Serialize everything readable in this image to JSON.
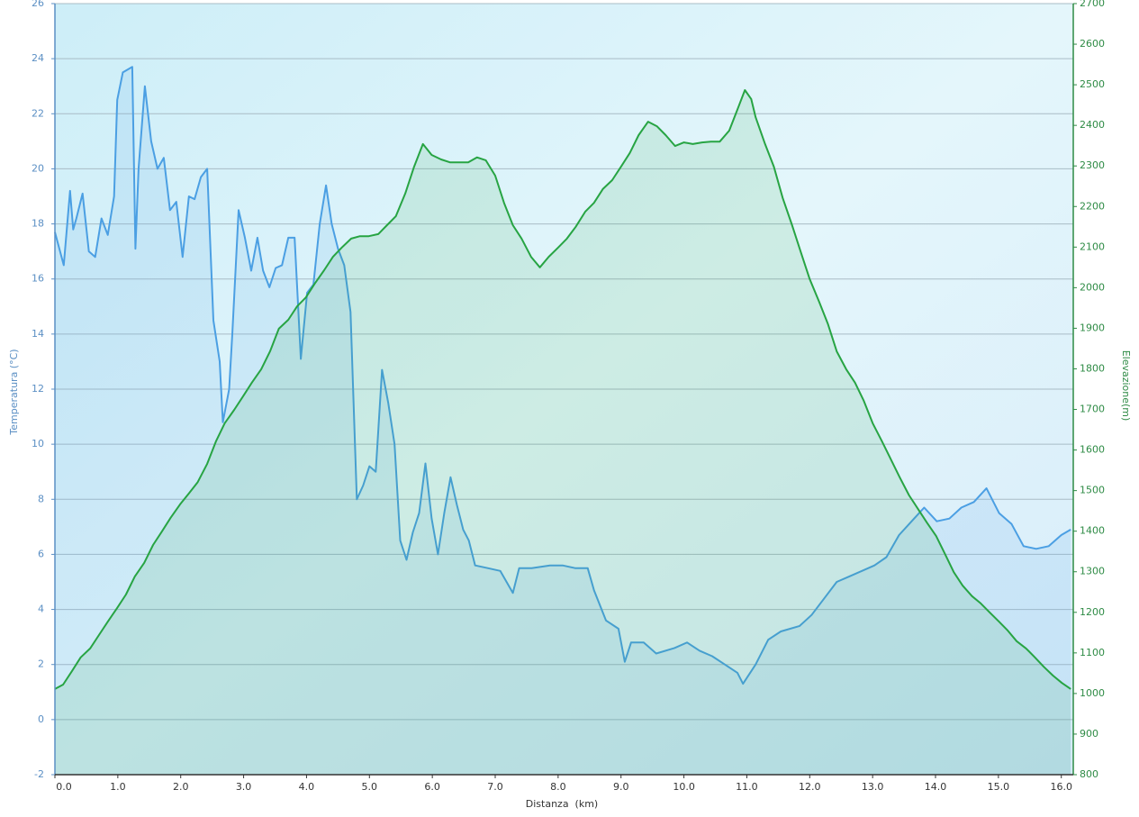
{
  "chart_data": {
    "type": "line",
    "xlabel": "Distanza  (km)",
    "ylabel": "Temperatura (°C)",
    "y2label": "Elevazione(m)",
    "xlim": [
      0,
      16.19
    ],
    "xticks": [
      {
        "value": 0,
        "label": "0.0"
      },
      {
        "value": 1,
        "label": "1.0"
      },
      {
        "value": 2,
        "label": "2.0"
      },
      {
        "value": 3,
        "label": "3.0"
      },
      {
        "value": 4,
        "label": "4.0"
      },
      {
        "value": 5,
        "label": "5.0"
      },
      {
        "value": 6,
        "label": "6.0"
      },
      {
        "value": 7,
        "label": "7.0"
      },
      {
        "value": 8,
        "label": "8.0"
      },
      {
        "value": 9,
        "label": "9.0"
      },
      {
        "value": 10,
        "label": "10.0"
      },
      {
        "value": 11,
        "label": "11.0"
      },
      {
        "value": 12,
        "label": "12.0"
      },
      {
        "value": 13,
        "label": "13.0"
      },
      {
        "value": 14,
        "label": "14.0"
      },
      {
        "value": 15,
        "label": "15.0"
      },
      {
        "value": 16,
        "label": "16.0"
      }
    ],
    "ylim": [
      -2,
      26
    ],
    "yticks": [
      -2,
      0,
      2,
      4,
      6,
      8,
      10,
      12,
      14,
      16,
      18,
      20,
      22,
      24,
      26
    ],
    "y2lim": [
      800,
      2700
    ],
    "y2ticks": [
      800,
      900,
      1000,
      1100,
      1200,
      1300,
      1400,
      1500,
      1600,
      1700,
      1800,
      1900,
      2000,
      2100,
      2200,
      2300,
      2400,
      2500,
      2600,
      2700
    ],
    "grid": true,
    "series": [
      {
        "color": "#4b9fe3",
        "x": [
          0.0,
          0.14,
          0.24,
          0.29,
          0.34,
          0.44,
          0.54,
          0.64,
          0.74,
          0.84,
          0.94,
          0.99,
          1.08,
          1.23,
          1.28,
          1.33,
          1.43,
          1.53,
          1.63,
          1.73,
          1.83,
          1.93,
          2.03,
          2.13,
          2.22,
          2.32,
          2.42,
          2.52,
          2.62,
          2.67,
          2.77,
          2.82,
          2.92,
          3.02,
          3.12,
          3.22,
          3.31,
          3.41,
          3.51,
          3.61,
          3.71,
          3.81,
          3.91,
          4.01,
          4.11,
          4.21,
          4.31,
          4.4,
          4.5,
          4.6,
          4.7,
          4.8,
          4.9,
          5.0,
          5.1,
          5.2,
          5.3,
          5.4,
          5.49,
          5.59,
          5.69,
          5.79,
          5.89,
          5.99,
          6.09,
          6.19,
          6.29,
          6.39,
          6.49,
          6.58,
          6.68,
          6.88,
          7.08,
          7.28,
          7.38,
          7.58,
          7.87,
          8.07,
          8.27,
          8.47,
          8.57,
          8.76,
          8.96,
          9.06,
          9.16,
          9.36,
          9.56,
          9.85,
          10.05,
          10.25,
          10.45,
          10.65,
          10.85,
          10.94,
          11.14,
          11.34,
          11.54,
          11.84,
          12.03,
          12.23,
          12.43,
          12.63,
          12.83,
          13.03,
          13.22,
          13.42,
          13.62,
          13.82,
          14.02,
          14.22,
          14.41,
          14.61,
          14.81,
          15.01,
          15.21,
          15.4,
          15.6,
          15.8,
          16.0,
          16.15
        ],
        "values": [
          17.7,
          16.5,
          19.2,
          17.8,
          18.2,
          19.1,
          17,
          16.8,
          18.2,
          17.6,
          19,
          22.5,
          23.5,
          23.7,
          17.1,
          20,
          23,
          21,
          20,
          20.4,
          18.5,
          18.8,
          16.8,
          19,
          18.9,
          19.7,
          20,
          14.5,
          13,
          10.8,
          12,
          14,
          18.5,
          17.5,
          16.3,
          17.5,
          16.3,
          15.7,
          16.4,
          16.5,
          17.5,
          17.5,
          13.1,
          15.5,
          15.8,
          18,
          19.4,
          18,
          17.1,
          16.5,
          14.8,
          8,
          8.5,
          9.2,
          9,
          12.7,
          11.5,
          10,
          6.5,
          5.8,
          6.8,
          7.5,
          9.3,
          7.3,
          6,
          7.5,
          8.8,
          7.8,
          6.9,
          6.5,
          5.6,
          5.5,
          5.4,
          4.6,
          5.5,
          5.5,
          5.6,
          5.6,
          5.5,
          5.5,
          4.7,
          3.6,
          3.3,
          2.1,
          2.8,
          2.8,
          2.4,
          2.6,
          2.8,
          2.5,
          2.3,
          2,
          1.7,
          1.3,
          2,
          2.9,
          3.2,
          3.4,
          3.8,
          4.4,
          5,
          5.2,
          5.4,
          5.6,
          5.9,
          6.7,
          7.2,
          7.7,
          7.2,
          7.3,
          7.7,
          7.9,
          8.4,
          7.5,
          7.1,
          6.3,
          6.2,
          6.3,
          6.7,
          6.9
        ]
      },
      {
        "color": "#27a443",
        "axis": "y2",
        "x": [
          0,
          0.13,
          0.27,
          0.41,
          0.56,
          0.7,
          0.84,
          0.99,
          1.13,
          1.27,
          1.42,
          1.56,
          1.7,
          1.84,
          1.99,
          2.13,
          2.27,
          2.42,
          2.56,
          2.7,
          2.85,
          2.99,
          3.13,
          3.28,
          3.42,
          3.56,
          3.71,
          3.85,
          3.99,
          4.13,
          4.28,
          4.42,
          4.56,
          4.71,
          4.85,
          4.99,
          5.14,
          5.28,
          5.42,
          5.57,
          5.71,
          5.85,
          5.99,
          6.14,
          6.28,
          6.42,
          6.57,
          6.71,
          6.85,
          7.0,
          7.14,
          7.28,
          7.42,
          7.57,
          7.71,
          7.85,
          8.0,
          8.14,
          8.28,
          8.43,
          8.57,
          8.71,
          8.86,
          9.0,
          9.14,
          9.28,
          9.43,
          9.57,
          9.71,
          9.86,
          10.0,
          10.14,
          10.29,
          10.43,
          10.57,
          10.72,
          10.86,
          10.97,
          11.07,
          11.14,
          11.29,
          11.43,
          11.57,
          11.72,
          11.86,
          12.0,
          12.15,
          12.29,
          12.43,
          12.58,
          12.72,
          12.86,
          13.0,
          13.15,
          13.29,
          13.43,
          13.58,
          13.72,
          13.86,
          14.01,
          14.15,
          14.29,
          14.43,
          14.58,
          14.72,
          14.86,
          15.01,
          15.15,
          15.29,
          15.44,
          15.58,
          15.72,
          15.87,
          16.01,
          16.15
        ],
        "values": [
          1011,
          1022,
          1055,
          1089,
          1111,
          1144,
          1177,
          1211,
          1244,
          1288,
          1322,
          1366,
          1399,
          1433,
          1466,
          1493,
          1521,
          1566,
          1621,
          1666,
          1699,
          1732,
          1766,
          1799,
          1843,
          1899,
          1921,
          1954,
          1976,
          2010,
          2043,
          2076,
          2099,
          2121,
          2127,
          2127,
          2132,
          2154,
          2176,
          2232,
          2298,
          2354,
          2327,
          2316,
          2309,
          2309,
          2309,
          2321,
          2314,
          2276,
          2209,
          2154,
          2121,
          2076,
          2050,
          2076,
          2099,
          2121,
          2150,
          2187,
          2209,
          2243,
          2265,
          2298,
          2332,
          2376,
          2409,
          2398,
          2376,
          2349,
          2358,
          2354,
          2358,
          2360,
          2360,
          2387,
          2443,
          2487,
          2465,
          2420,
          2354,
          2298,
          2221,
          2154,
          2087,
          2021,
          1965,
          1910,
          1843,
          1799,
          1766,
          1721,
          1666,
          1621,
          1577,
          1533,
          1488,
          1455,
          1422,
          1388,
          1344,
          1299,
          1266,
          1240,
          1222,
          1200,
          1177,
          1155,
          1129,
          1111,
          1089,
          1066,
          1044,
          1026,
          1011
        ]
      }
    ]
  }
}
